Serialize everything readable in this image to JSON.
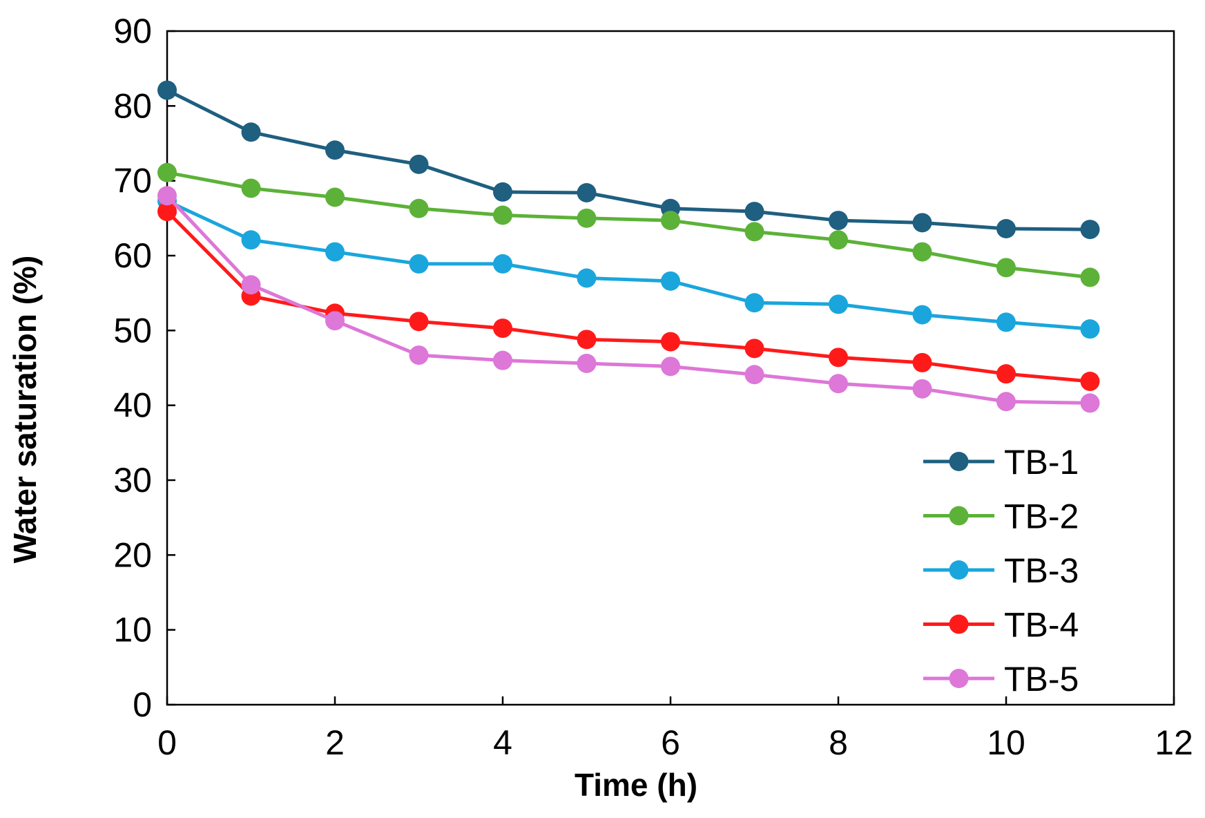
{
  "chart_data": {
    "type": "line",
    "title": "",
    "xlabel": "Time (h)",
    "ylabel": "Water saturation (%)",
    "xlim": [
      0,
      12
    ],
    "ylim": [
      0,
      90
    ],
    "xticks": [
      0,
      2,
      4,
      6,
      8,
      10,
      12
    ],
    "yticks": [
      0,
      10,
      20,
      30,
      40,
      50,
      60,
      70,
      80,
      90
    ],
    "grid": false,
    "legend_position": "bottom-right",
    "x": [
      0,
      1,
      2,
      3,
      4,
      5,
      6,
      7,
      8,
      9,
      10,
      11
    ],
    "series": [
      {
        "name": "TB-1",
        "color": "#1f5f80",
        "values": [
          82.1,
          76.5,
          74.1,
          72.2,
          68.5,
          68.4,
          66.3,
          65.9,
          64.7,
          64.4,
          63.6,
          63.5
        ]
      },
      {
        "name": "TB-2",
        "color": "#5cb238",
        "values": [
          71.1,
          69.0,
          67.8,
          66.3,
          65.4,
          65.0,
          64.7,
          63.2,
          62.1,
          60.5,
          58.4,
          57.1
        ]
      },
      {
        "name": "TB-3",
        "color": "#1aa6dc",
        "values": [
          67.3,
          62.1,
          60.5,
          58.9,
          58.9,
          57.0,
          56.6,
          53.7,
          53.5,
          52.1,
          51.1,
          50.2
        ]
      },
      {
        "name": "TB-4",
        "color": "#ff1a1a",
        "values": [
          65.9,
          54.6,
          52.3,
          51.2,
          50.3,
          48.8,
          48.5,
          47.6,
          46.4,
          45.7,
          44.2,
          43.2
        ]
      },
      {
        "name": "TB-5",
        "color": "#dd77d8",
        "values": [
          68.0,
          56.1,
          51.3,
          46.7,
          46.0,
          45.6,
          45.2,
          44.1,
          42.9,
          42.2,
          40.5,
          40.3
        ]
      }
    ]
  }
}
